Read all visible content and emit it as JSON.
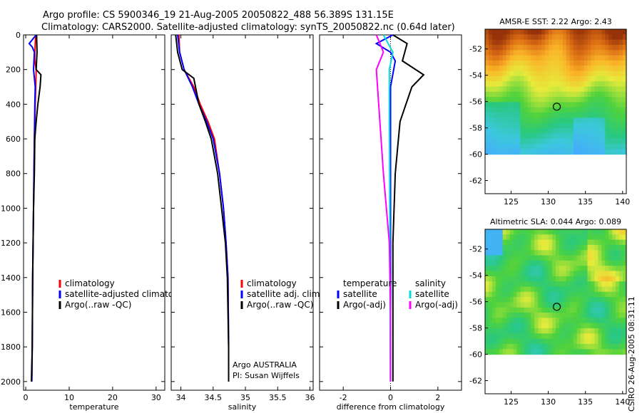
{
  "header": {
    "line1": "Argo profile: CS 5900346_19 21-Aug-2005 20050822_488 56.389S 131.15E",
    "line2": "Climatology: CARS2000. Satellite-adjusted climatology: synTS_20050822.nc (0.64d later)"
  },
  "credit": "CSIRO 26-Aug-2005 08:31:11",
  "colors": {
    "climatology": "#ff0000",
    "satellite": "#0000ff",
    "argo": "#000000",
    "sal_satellite": "#00dddd",
    "sal_argo": "#ff00ff"
  },
  "chart_data": [
    {
      "type": "line",
      "id": "temperature-profile",
      "xlabel": "temperature",
      "xlim": [
        -0.5,
        32
      ],
      "ylim": [
        2050,
        0
      ],
      "xticks": [
        0,
        10,
        20,
        30
      ],
      "yticks": [
        0,
        200,
        400,
        600,
        800,
        1000,
        1200,
        1400,
        1600,
        1800,
        2000
      ],
      "legend": [
        "climatology",
        "satellite-adjusted climatology",
        "Argo(..raw -QC)"
      ],
      "series": [
        {
          "name": "climatology",
          "color": "#ff0000",
          "x": [
            2.3,
            2.2,
            2.1,
            2.1,
            2.4,
            2.3,
            2.2,
            2.0,
            1.9,
            1.8,
            1.6,
            1.5,
            1.4
          ],
          "y": [
            0,
            50,
            100,
            150,
            200,
            300,
            400,
            600,
            800,
            1000,
            1400,
            1800,
            2000
          ]
        },
        {
          "name": "satellite-adjusted climatology",
          "color": "#0000ff",
          "x": [
            2.4,
            0.8,
            1.5,
            2.0,
            1.8,
            2.2,
            2.1,
            2.0,
            1.9,
            1.8,
            1.6,
            1.5,
            1.4
          ],
          "y": [
            0,
            50,
            70,
            100,
            200,
            300,
            400,
            600,
            800,
            1000,
            1400,
            1800,
            2000
          ]
        },
        {
          "name": "Argo(..raw -QC)",
          "color": "#000000",
          "x": [
            2.5,
            2.6,
            2.4,
            3.5,
            3.3,
            2.8,
            2.4,
            2.1,
            2.0,
            1.8,
            1.6,
            1.5,
            1.3
          ],
          "y": [
            0,
            100,
            200,
            230,
            300,
            400,
            500,
            600,
            800,
            1000,
            1400,
            1800,
            2000
          ]
        }
      ]
    },
    {
      "type": "line",
      "id": "salinity-profile",
      "xlabel": "salinity",
      "xlim": [
        33.85,
        36.05
      ],
      "ylim": [
        2050,
        0
      ],
      "xticks": [
        34,
        34.5,
        35,
        35.5,
        36
      ],
      "xticklabels": [
        "34",
        "34.5",
        "35",
        "35.5",
        "36"
      ],
      "legend": [
        "climatology",
        "satellite adj. clim.",
        "Argo(..raw -QC)"
      ],
      "annotation": [
        "Argo AUSTRALIA",
        "PI: Susan Wijffels"
      ],
      "series": [
        {
          "name": "climatology",
          "color": "#ff0000",
          "x": [
            33.97,
            33.98,
            34.05,
            34.2,
            34.3,
            34.42,
            34.52,
            34.6,
            34.66,
            34.7,
            34.73,
            34.74,
            34.74
          ],
          "y": [
            0,
            100,
            200,
            300,
            400,
            500,
            600,
            800,
            1000,
            1200,
            1400,
            1800,
            2000
          ]
        },
        {
          "name": "satellite adj. clim.",
          "color": "#0000ff",
          "x": [
            33.95,
            33.98,
            34.05,
            34.18,
            34.28,
            34.4,
            34.5,
            34.6,
            34.66,
            34.7,
            34.73,
            34.74,
            34.74
          ],
          "y": [
            0,
            100,
            200,
            300,
            400,
            500,
            600,
            800,
            1000,
            1200,
            1400,
            1800,
            2000
          ]
        },
        {
          "name": "Argo(..raw -QC)",
          "color": "#000000",
          "x": [
            33.92,
            33.95,
            34.02,
            34.2,
            34.28,
            34.38,
            34.47,
            34.57,
            34.63,
            34.69,
            34.72,
            34.74,
            34.74
          ],
          "y": [
            0,
            100,
            200,
            250,
            400,
            500,
            600,
            800,
            1000,
            1200,
            1400,
            1800,
            2000
          ]
        }
      ]
    },
    {
      "type": "line",
      "id": "difference-profile",
      "xlabel": "difference from climatology",
      "xlim": [
        -3,
        3
      ],
      "ylim": [
        2050,
        0
      ],
      "xticks": [
        -2,
        0,
        2
      ],
      "legend_left": [
        "temperature",
        "satellite",
        "Argo(-adj)"
      ],
      "legend_right": [
        "salinity",
        "satellite",
        "Argo(-adj)"
      ],
      "series": [
        {
          "name": "temperature satellite",
          "color": "#0000ff",
          "x": [
            0.1,
            -0.6,
            0.0,
            0.2,
            0.0,
            0.0,
            0.0,
            0.0,
            0.0,
            0.0
          ],
          "y": [
            0,
            50,
            100,
            150,
            300,
            600,
            1000,
            1400,
            1800,
            2000
          ]
        },
        {
          "name": "temperature Argo(-adj)",
          "color": "#000000",
          "x": [
            0.1,
            0.7,
            0.5,
            1.4,
            0.9,
            0.4,
            0.2,
            0.1,
            0.1,
            0.1
          ],
          "y": [
            0,
            50,
            150,
            230,
            300,
            500,
            800,
            1200,
            1600,
            2000
          ]
        },
        {
          "name": "salinity satellite",
          "color": "#00dddd",
          "x": [
            -0.3,
            0.1,
            -0.05,
            -0.05,
            -0.04,
            -0.03,
            -0.02,
            -0.01
          ],
          "y": [
            0,
            100,
            200,
            500,
            800,
            1200,
            1600,
            2000
          ]
        },
        {
          "name": "salinity Argo(-adj)",
          "color": "#ff00ff",
          "x": [
            -0.6,
            -0.3,
            -0.6,
            -0.5,
            -0.3,
            -0.05,
            0.0,
            0.0
          ],
          "y": [
            0,
            100,
            200,
            400,
            800,
            1200,
            1600,
            2000
          ]
        }
      ]
    },
    {
      "type": "heatmap",
      "id": "amsre-sst-map",
      "title": "AMSR-E SST: 2.22 Argo: 2.43",
      "xlim": [
        121.5,
        140.5
      ],
      "ylim": [
        -63,
        -50.5
      ],
      "data_lat_range": [
        -60,
        -50.5
      ],
      "xticks": [
        125,
        130,
        135,
        140
      ],
      "yticks": [
        -52,
        -54,
        -56,
        -58,
        -60,
        -62
      ],
      "argo_position": {
        "lon": 131.15,
        "lat": -56.389
      }
    },
    {
      "type": "heatmap",
      "id": "altimetric-sla-map",
      "title": "Altimetric SLA: 0.044 Argo: 0.089",
      "xlim": [
        121.5,
        140.5
      ],
      "ylim": [
        -63,
        -50.5
      ],
      "data_lat_range": [
        -60,
        -50.5
      ],
      "xticks": [
        125,
        130,
        135,
        140
      ],
      "yticks": [
        -52,
        -54,
        -56,
        -58,
        -60,
        -62
      ],
      "argo_position": {
        "lon": 131.15,
        "lat": -56.389
      }
    }
  ]
}
